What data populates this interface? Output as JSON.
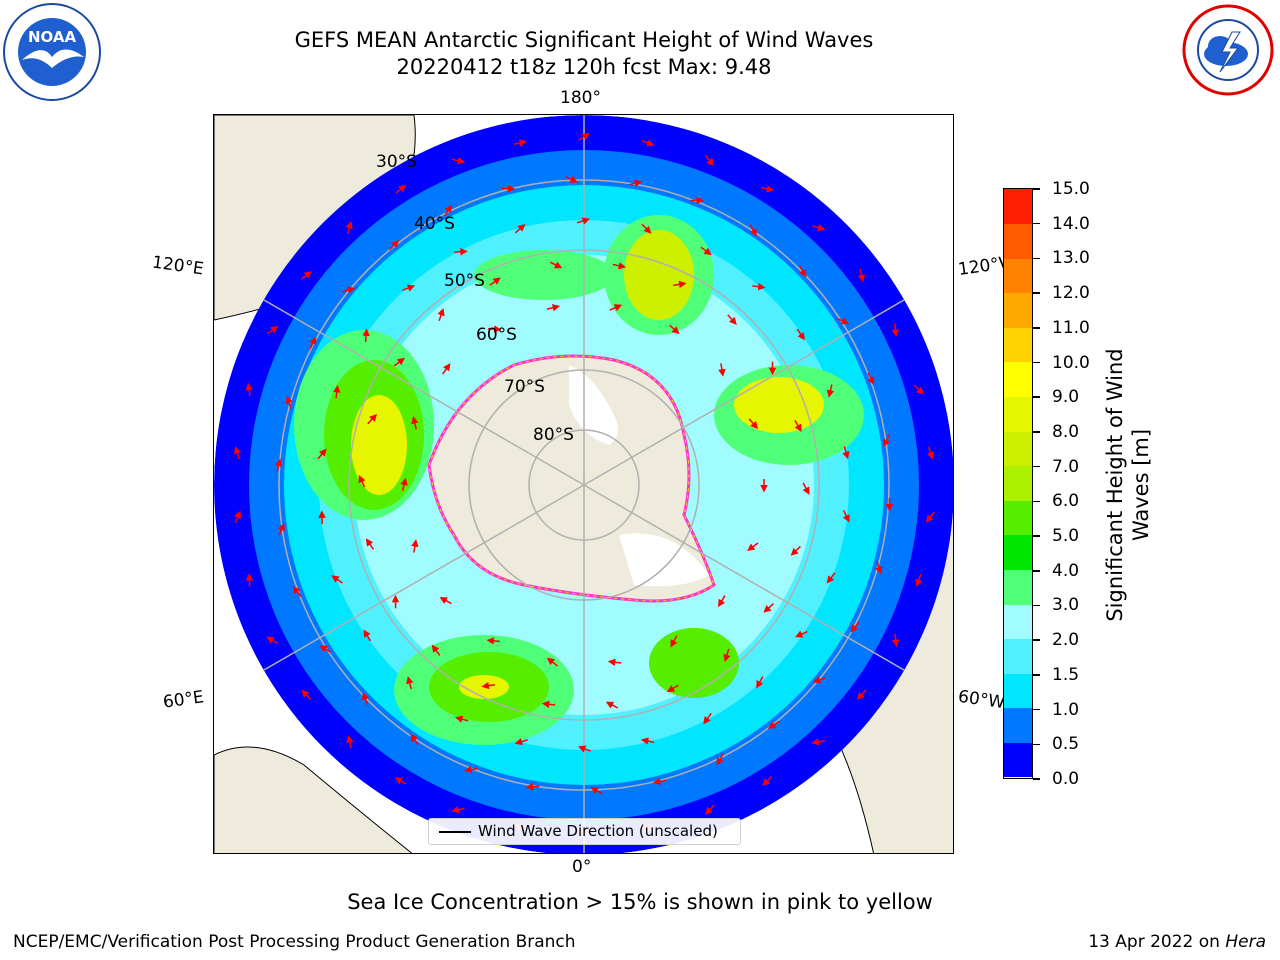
{
  "title": {
    "line1": "GEFS MEAN Antarctic Significant Height of Wind Waves",
    "line2": "20220412 t18z 120h fcst   Max: 9.48"
  },
  "logos": {
    "left": "noaa-logo",
    "right": "nws-logo",
    "left_icon": "noaa-seagull-icon",
    "right_icon": "nws-storm-cloud-icon"
  },
  "map": {
    "projection": "south-polar-stereographic",
    "parallel_labels": [
      "30°S",
      "40°S",
      "50°S",
      "60°S",
      "70°S",
      "80°S"
    ],
    "meridian_labels": {
      "top": "180°",
      "bottom": "0°",
      "upper_left": "120°E",
      "upper_right": "120°W",
      "lower_left": "60°E",
      "lower_right": "60°W"
    },
    "land_color": "#efebdc",
    "arrow_color": "#ff0000",
    "sea_ice_edge_colors": [
      "#ff33cc",
      "#ffd700"
    ]
  },
  "colorbar": {
    "label_line1": "Significant Height of Wind",
    "label_line2": "Waves [m]",
    "ticks": [
      "0.0",
      "0.5",
      "1.0",
      "1.5",
      "2.0",
      "3.0",
      "4.0",
      "5.0",
      "6.0",
      "7.0",
      "8.0",
      "9.0",
      "10.0",
      "11.0",
      "12.0",
      "13.0",
      "14.0",
      "15.0"
    ],
    "colors": [
      "#0000ff",
      "#0078ff",
      "#00e6ff",
      "#50f0ff",
      "#a0fcff",
      "#50ff78",
      "#00e600",
      "#55ee00",
      "#aaf000",
      "#ccf000",
      "#e6f500",
      "#ffff00",
      "#ffd200",
      "#ffaa00",
      "#ff8200",
      "#ff5a00",
      "#ff1e00"
    ]
  },
  "legend": {
    "label": "Wind Wave Direction (unscaled)"
  },
  "subtitle": "Sea Ice Concentration > 15% is shown in pink to yellow",
  "footer": {
    "left": "NCEP/EMC/Verification Post Processing Product Generation Branch",
    "right_date": "13 Apr 2022 on ",
    "right_host": "Hera"
  }
}
